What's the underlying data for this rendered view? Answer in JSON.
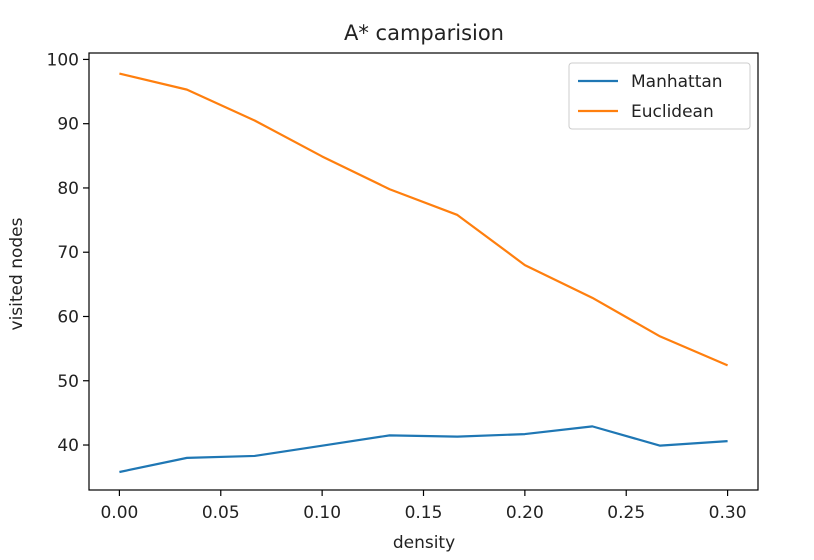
{
  "chart_data": {
    "type": "line",
    "title": "A* camparision",
    "xlabel": "density",
    "ylabel": "visited nodes",
    "x": [
      0.0,
      0.0333,
      0.0667,
      0.1,
      0.1333,
      0.1667,
      0.2,
      0.2333,
      0.2667,
      0.3
    ],
    "xlim": [
      -0.015,
      0.315
    ],
    "ylim": [
      33,
      101
    ],
    "xticks": [
      0.0,
      0.05,
      0.1,
      0.15,
      0.2,
      0.25,
      0.3
    ],
    "xtick_labels": [
      "0.00",
      "0.05",
      "0.10",
      "0.15",
      "0.20",
      "0.25",
      "0.30"
    ],
    "yticks": [
      40,
      50,
      60,
      70,
      80,
      90,
      100
    ],
    "ytick_labels": [
      "40",
      "50",
      "60",
      "70",
      "80",
      "90",
      "100"
    ],
    "grid": false,
    "legend_position": "top-right",
    "series": [
      {
        "name": "Manhattan",
        "color": "#1f77b4",
        "values": [
          35.8,
          38.0,
          38.3,
          39.9,
          41.5,
          41.3,
          41.7,
          42.9,
          39.9,
          40.6
        ]
      },
      {
        "name": "Euclidean",
        "color": "#ff7f0e",
        "values": [
          97.8,
          95.3,
          90.5,
          84.9,
          79.8,
          75.8,
          68.0,
          62.9,
          56.9,
          52.4
        ]
      }
    ]
  }
}
